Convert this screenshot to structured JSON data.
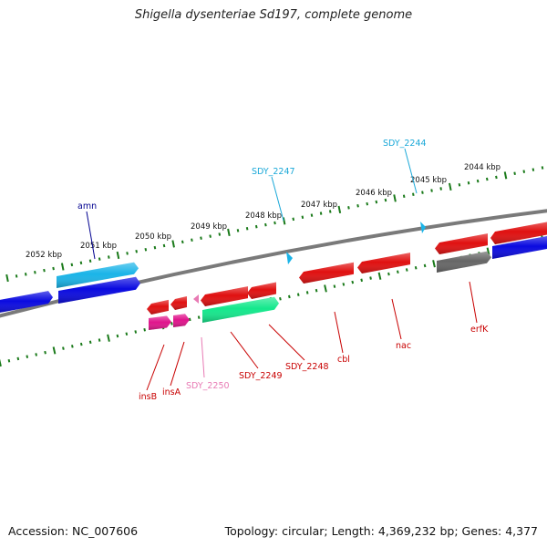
{
  "title": "Shigella dysenteriae Sd197, complete genome",
  "accession": "Accession: NC_007606",
  "summary": "Topology: circular; Length: 4,369,232 bp; Genes: 4,377",
  "colors": {
    "backbone": "#7a7a7a",
    "tick": "#1a7a1a",
    "gene_red": "#e01010",
    "gene_blue": "#0a0ae0",
    "gene_cyan": "#1ab4e8",
    "gene_gray": "#666666",
    "gene_magenta": "#e0148c",
    "gene_green": "#14e88c",
    "label_red": "#c80000",
    "label_cyan": "#1aa8d8",
    "label_navy": "#000090",
    "label_pink": "#e87ab4"
  },
  "scale_labels": [
    "2052 kbp",
    "2051 kbp",
    "2050 kbp",
    "2049 kbp",
    "2048 kbp",
    "2047 kbp",
    "2046 kbp",
    "2045 kbp",
    "2044 kbp"
  ],
  "gene_labels": {
    "amn": "amn",
    "sdy_2244": "SDY_2244",
    "sdy_2247": "SDY_2247",
    "insB": "insB",
    "insA": "insA",
    "sdy_2250": "SDY_2250",
    "sdy_2249": "SDY_2249",
    "sdy_2248": "SDY_2248",
    "cbl": "cbl",
    "nac": "nac",
    "erfK": "erfK"
  }
}
